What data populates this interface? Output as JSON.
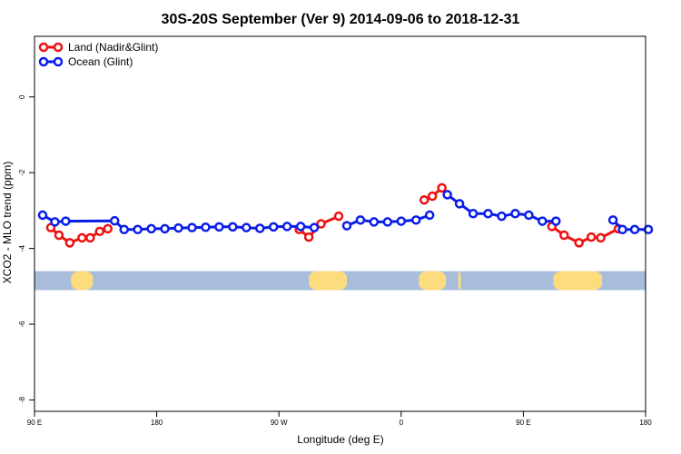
{
  "chart_data": {
    "type": "line",
    "title": "30S-20S September (Ver 9)   2014-09-06 to 2018-12-31",
    "xlabel": "Longitude (deg E)",
    "ylabel": "XCO2 - MLO trend (ppm)",
    "xlim": [
      90,
      540
    ],
    "ylim": [
      -8.3,
      1.6
    ],
    "x_ticks": [
      {
        "value": 90,
        "label": "90 E"
      },
      {
        "value": 180,
        "label": "180"
      },
      {
        "value": 270,
        "label": "90 W"
      },
      {
        "value": 360,
        "label": "0"
      },
      {
        "value": 450,
        "label": "90 E"
      },
      {
        "value": 540,
        "label": "180"
      }
    ],
    "y_ticks": [
      {
        "value": 0,
        "label": "0"
      },
      {
        "value": -2,
        "label": "-2"
      },
      {
        "value": -4,
        "label": "-4"
      },
      {
        "value": -6,
        "label": "-6"
      },
      {
        "value": -8,
        "label": "-8"
      }
    ],
    "land_band": {
      "y_top": -4.6,
      "y_bottom": -5.1,
      "ocean_color": "#a7bddb",
      "land_color": "#fddc7e"
    },
    "land_segments": [
      [
        117,
        133
      ],
      [
        292,
        320
      ],
      [
        373,
        393
      ],
      [
        402,
        404
      ],
      [
        472,
        508
      ],
      [
        540,
        541
      ]
    ],
    "series": [
      {
        "name": "Land (Nadir&Glint)",
        "color": "#ee1111",
        "segments": [
          [
            [
              102,
              -3.45
            ],
            [
              108,
              -3.65
            ],
            [
              116,
              -3.85
            ],
            [
              125,
              -3.72
            ],
            [
              131,
              -3.72
            ],
            [
              138,
              -3.55
            ],
            [
              144,
              -3.48
            ]
          ],
          [
            [
              285,
              -3.5
            ],
            [
              292,
              -3.7
            ],
            [
              301,
              -3.35
            ],
            [
              314,
              -3.15
            ]
          ],
          [
            [
              377,
              -2.72
            ],
            [
              383,
              -2.62
            ],
            [
              390,
              -2.4
            ]
          ],
          [
            [
              471,
              -3.42
            ],
            [
              480,
              -3.65
            ],
            [
              491,
              -3.85
            ],
            [
              500,
              -3.7
            ],
            [
              507,
              -3.72
            ],
            [
              520,
              -3.48
            ]
          ]
        ]
      },
      {
        "name": "Ocean (Glint)",
        "color": "#0a1ee8",
        "segments": [
          [
            [
              96,
              -3.12
            ],
            [
              105,
              -3.3
            ],
            [
              113,
              -3.28
            ],
            [
              149,
              -3.27
            ],
            [
              156,
              -3.5
            ],
            [
              166,
              -3.5
            ],
            [
              176,
              -3.48
            ],
            [
              186,
              -3.48
            ],
            [
              196,
              -3.46
            ],
            [
              206,
              -3.45
            ],
            [
              216,
              -3.44
            ],
            [
              226,
              -3.43
            ],
            [
              236,
              -3.43
            ],
            [
              246,
              -3.45
            ],
            [
              256,
              -3.47
            ],
            [
              266,
              -3.43
            ],
            [
              276,
              -3.42
            ],
            [
              286,
              -3.42
            ],
            [
              296,
              -3.45
            ]
          ],
          [
            [
              320,
              -3.4
            ],
            [
              330,
              -3.25
            ],
            [
              340,
              -3.3
            ],
            [
              350,
              -3.3
            ],
            [
              360,
              -3.28
            ],
            [
              371,
              -3.25
            ],
            [
              381,
              -3.12
            ]
          ],
          [
            [
              394,
              -2.58
            ],
            [
              403,
              -2.82
            ],
            [
              413,
              -3.08
            ],
            [
              424,
              -3.08
            ],
            [
              434,
              -3.15
            ],
            [
              444,
              -3.08
            ],
            [
              454,
              -3.12
            ],
            [
              464,
              -3.28
            ],
            [
              474,
              -3.28
            ]
          ],
          [
            [
              516,
              -3.25
            ],
            [
              523,
              -3.5
            ],
            [
              532,
              -3.5
            ],
            [
              542,
              -3.5
            ]
          ]
        ]
      }
    ],
    "legend_position": "top-left"
  }
}
